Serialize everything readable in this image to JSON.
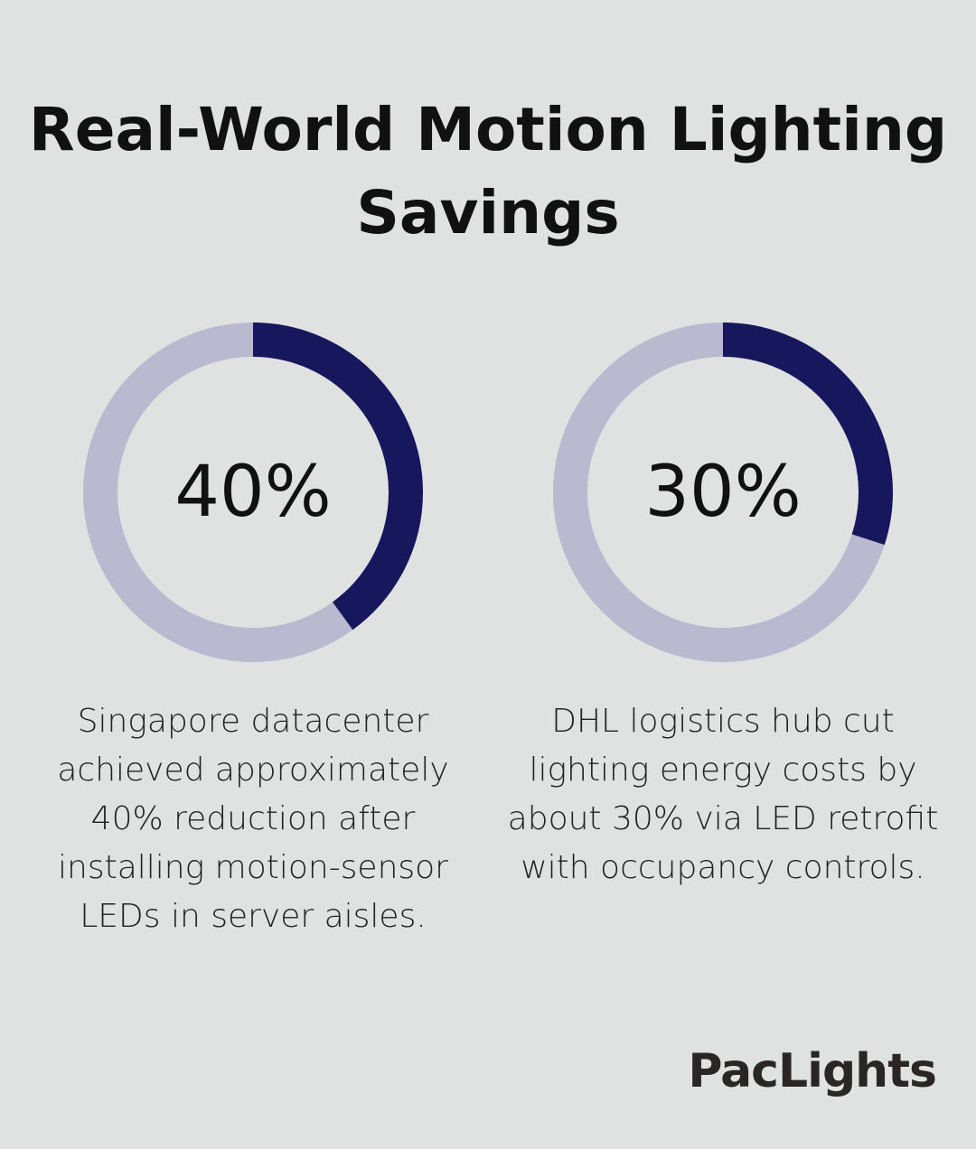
{
  "title": "Real-World Motion Lighting Savings",
  "colors": {
    "background": "#e0e2e1",
    "filled": "#17175e",
    "remaining": "#b9b9cf"
  },
  "chart_data": [
    {
      "type": "pie",
      "style": "donut",
      "value": 40,
      "max": 100,
      "label": "40%",
      "description": "Singapore datacenter achieved approximately 40% reduction after installing motion-sensor LEDs in server aisles."
    },
    {
      "type": "pie",
      "style": "donut",
      "value": 30,
      "max": 100,
      "label": "30%",
      "description": "DHL logistics hub cut lighting energy costs by about 30% via LED retrofit with occupancy controls."
    }
  ],
  "logo": "PacLights"
}
